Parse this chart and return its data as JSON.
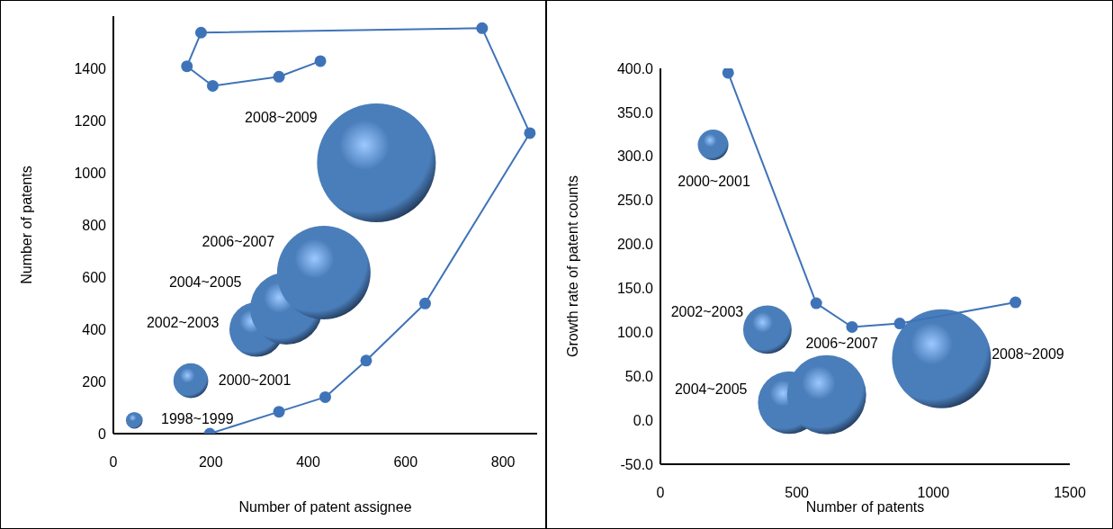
{
  "chart_data": [
    {
      "type": "bubble",
      "xlabel": "Number of patent assignee",
      "ylabel": "Number of patents",
      "xlim": [
        0,
        870
      ],
      "xticks": [
        0,
        200,
        400,
        600,
        800
      ],
      "ylim": [
        0,
        1600
      ],
      "yticks": [
        0,
        200,
        400,
        600,
        800,
        1000,
        1200,
        1400
      ],
      "grid": false,
      "legend": false,
      "marker": "circle",
      "series": [
        {
          "type": "bubble",
          "color": "#4a7ebb",
          "x": [
            43,
            159,
            294,
            355,
            432,
            540
          ],
          "values": [
            51,
            203,
            399,
            480,
            617,
            1038
          ],
          "sizes": [
            0.02,
            0.086,
            0.21,
            0.37,
            0.62,
            1
          ],
          "value_labels": [
            "1998~1999",
            "2000~2001",
            "2002~2003",
            "2004~2005",
            "2006~2007",
            "2008~2009"
          ]
        },
        {
          "type": "line",
          "color": "#3f73b8",
          "x": [
            198,
            340,
            435,
            519,
            640,
            855,
            757,
            180,
            151,
            204,
            340,
            425
          ],
          "values": [
            0,
            84,
            140,
            280,
            499,
            1152,
            1554,
            1537,
            1408,
            1333,
            1368,
            1428
          ]
        }
      ]
    },
    {
      "type": "bubble",
      "xlabel": "Number of patents",
      "ylabel": "Growth rate of patent counts",
      "xlim": [
        0,
        1500
      ],
      "xticks": [
        0,
        500,
        1000,
        1500
      ],
      "ylim": [
        -50,
        400
      ],
      "yticks": [
        {
          "value": -50,
          "label": "-50.0"
        },
        {
          "value": 0,
          "label": "0.0"
        },
        {
          "value": 50,
          "label": "50.0"
        },
        {
          "value": 100,
          "label": "100.0"
        },
        {
          "value": 150,
          "label": "150.0"
        },
        {
          "value": 200,
          "label": "200.0"
        },
        {
          "value": 250,
          "label": "250.0"
        },
        {
          "value": 300,
          "label": "300.0"
        },
        {
          "value": 350,
          "label": "350.0"
        },
        {
          "value": 400,
          "label": "400.0"
        }
      ],
      "grid": false,
      "legend": false,
      "marker": "circle",
      "series": [
        {
          "type": "bubble",
          "color": "#4a7ebb",
          "x": [
            193,
            392,
            472,
            609,
            1030
          ],
          "values": [
            313,
            103,
            20,
            29,
            70
          ],
          "sizes": [
            0.096,
            0.24,
            0.4,
            0.64,
            1
          ],
          "value_labels": [
            "2000~2001",
            "2002~2003",
            "2004~2005",
            "2006~2007",
            "2008~2009"
          ]
        },
        {
          "type": "line",
          "color": "#3f73b8",
          "x": [
            248,
            571,
            702,
            877,
            1301
          ],
          "values": [
            395,
            133,
            106,
            110,
            134
          ]
        }
      ]
    }
  ]
}
